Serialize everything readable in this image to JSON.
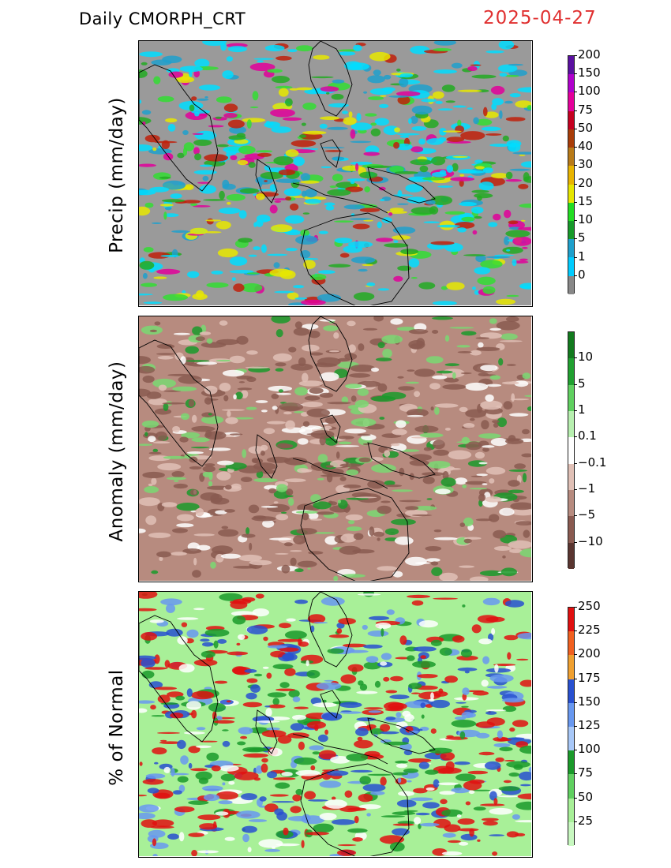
{
  "header": {
    "title": "Daily CMORPH_CRT",
    "date": "2025-04-27"
  },
  "panels": [
    {
      "id": "precip",
      "ylabel": "Precip (mm/day)",
      "background": "#9a9a9a",
      "colorbar": {
        "colors": [
          "#888888",
          "#00ccff",
          "#1ea0cc",
          "#169a2a",
          "#22dd22",
          "#e6e600",
          "#e8b400",
          "#b87a18",
          "#a83c08",
          "#c40020",
          "#e4009a",
          "#b000cc",
          "#5a10a0"
        ],
        "labels": [
          "0",
          "1",
          "5",
          "10",
          "15",
          "20",
          "30",
          "40",
          "50",
          "75",
          "100",
          "150",
          "200"
        ]
      },
      "swatches": [
        "#00ddff",
        "#1ea0cc",
        "#22aa22",
        "#33dd33",
        "#e8e800",
        "#c0200a",
        "#e0009a"
      ]
    },
    {
      "id": "anomaly",
      "ylabel": "Anomaly (mm/day)",
      "background": "#b78b7f",
      "colorbar": {
        "colors": [
          "#5a3530",
          "#8a5a50",
          "#b78b7f",
          "#e0c0b6",
          "#ffffff",
          "#b8f0b0",
          "#60d060",
          "#20a030",
          "#127a1e"
        ],
        "labels": [
          "-10",
          "-5",
          "-1",
          "-0.1",
          "0.1",
          "1",
          "5",
          "10"
        ]
      },
      "swatches": [
        "#8a5a50",
        "#e0c0b6",
        "#ffffff",
        "#7ad872",
        "#1a9a2a"
      ]
    },
    {
      "id": "percent",
      "ylabel": "% of Normal",
      "background": "#a8f098",
      "colorbar": {
        "colors": [
          "#c8f8c0",
          "#a8f098",
          "#60d060",
          "#1a9a2a",
          "#a8c8f8",
          "#6898f0",
          "#2850d0",
          "#f0a030",
          "#f06020",
          "#e01010"
        ],
        "labels": [
          "25",
          "50",
          "75",
          "100",
          "125",
          "150",
          "175",
          "200",
          "225",
          "250"
        ]
      },
      "swatches": [
        "#e01010",
        "#2850d0",
        "#6898f0",
        "#1a9a2a",
        "#ffffff"
      ]
    }
  ]
}
